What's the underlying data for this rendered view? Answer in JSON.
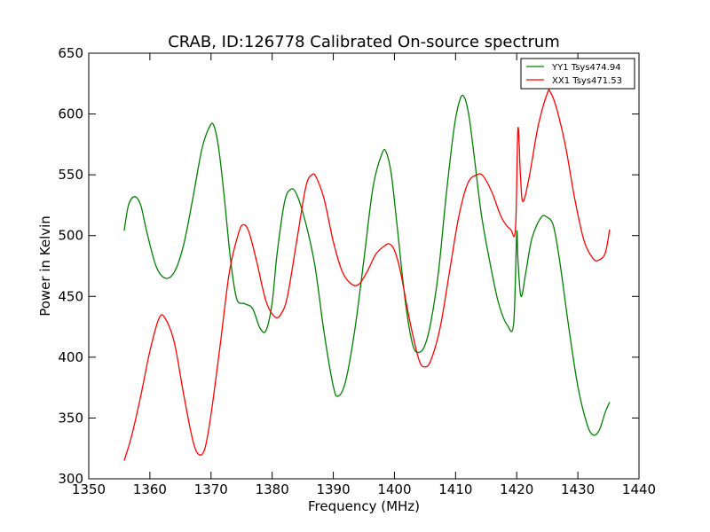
{
  "chart_data": {
    "type": "line",
    "title": "CRAB, ID:126778 Calibrated On-source spectrum",
    "xlabel": "Frequency (MHz)",
    "ylabel": "Power in Kelvin",
    "xlim": [
      1350,
      1440
    ],
    "ylim": [
      300,
      650
    ],
    "xticks": [
      1350,
      1360,
      1370,
      1380,
      1390,
      1400,
      1410,
      1420,
      1430,
      1440
    ],
    "yticks": [
      300,
      350,
      400,
      450,
      500,
      550,
      600,
      650
    ],
    "grid": false,
    "legend_position": "top-right",
    "series": [
      {
        "name": "YY1 Tsys474.94",
        "color": "#008000",
        "x": [
          1355.8,
          1356.5,
          1357.5,
          1358.5,
          1359.5,
          1361,
          1362.5,
          1364,
          1365.5,
          1367,
          1368.5,
          1369.8,
          1370.5,
          1371.3,
          1372.2,
          1373.2,
          1374.2,
          1375.5,
          1376.8,
          1378,
          1379,
          1380,
          1380.8,
          1382,
          1383,
          1384,
          1385.5,
          1387,
          1388.5,
          1390,
          1390.8,
          1392,
          1393.5,
          1395,
          1396.5,
          1398,
          1398.7,
          1399.5,
          1400.5,
          1401.8,
          1403,
          1404,
          1405,
          1406,
          1407.2,
          1408.5,
          1409.8,
          1410.8,
          1411.5,
          1412.2,
          1413,
          1414.2,
          1415.5,
          1417,
          1418.5,
          1419.5,
          1420,
          1420.2,
          1420.7,
          1421.5,
          1422.5,
          1424,
          1425,
          1426,
          1427,
          1428.5,
          1430,
          1431.5,
          1432.5,
          1433.5,
          1434.5,
          1435.2
        ],
        "values": [
          504,
          525,
          532,
          525,
          503,
          475,
          465,
          470,
          492,
          530,
          571,
          590,
          590,
          570,
          530,
          480,
          448,
          444,
          440,
          424,
          422,
          445,
          485,
          527,
          538,
          534,
          510,
          475,
          420,
          376,
          368,
          380,
          422,
          480,
          540,
          568,
          568,
          550,
          505,
          445,
          410,
          404,
          410,
          430,
          470,
          535,
          590,
          613,
          613,
          598,
          567,
          518,
          481,
          445,
          426,
          428,
          502,
          480,
          450,
          470,
          498,
          515,
          515,
          508,
          480,
          425,
          376,
          345,
          336,
          340,
          355,
          363
        ]
      },
      {
        "name": "XX1 Tsys471.53",
        "color": "#ff0000",
        "x": [
          1355.8,
          1357,
          1358.5,
          1360,
          1361.5,
          1362.5,
          1364,
          1365.5,
          1367,
          1368,
          1369,
          1370,
          1371.5,
          1373,
          1374.5,
          1375.3,
          1376.2,
          1377.5,
          1379,
          1380.5,
          1381.5,
          1382.5,
          1384,
          1385.5,
          1386.5,
          1387.2,
          1388.5,
          1390,
          1391.5,
          1393,
          1394.2,
          1395.5,
          1397,
          1398.5,
          1399.2,
          1400,
          1401,
          1402.5,
          1404,
          1405,
          1406,
          1407.5,
          1409,
          1410.5,
          1412,
          1413.5,
          1414.5,
          1416,
          1417.5,
          1419,
          1419.8,
          1420.2,
          1420.6,
          1421,
          1422,
          1423.5,
          1425,
          1425.5,
          1426.5,
          1428,
          1429.5,
          1431,
          1432.5,
          1433.5,
          1434.5,
          1435.2
        ],
        "values": [
          315,
          335,
          368,
          405,
          432,
          432,
          412,
          370,
          332,
          320,
          325,
          353,
          410,
          470,
          502,
          509,
          503,
          478,
          446,
          433,
          436,
          450,
          495,
          540,
          550,
          548,
          530,
          495,
          470,
          460,
          460,
          470,
          485,
          492,
          493,
          488,
          470,
          430,
          398,
          392,
          398,
          425,
          470,
          515,
          543,
          550,
          549,
          535,
          515,
          505,
          506,
          588,
          550,
          528,
          547,
          590,
          617,
          618,
          605,
          573,
          530,
          496,
          481,
          480,
          486,
          505
        ]
      }
    ]
  }
}
